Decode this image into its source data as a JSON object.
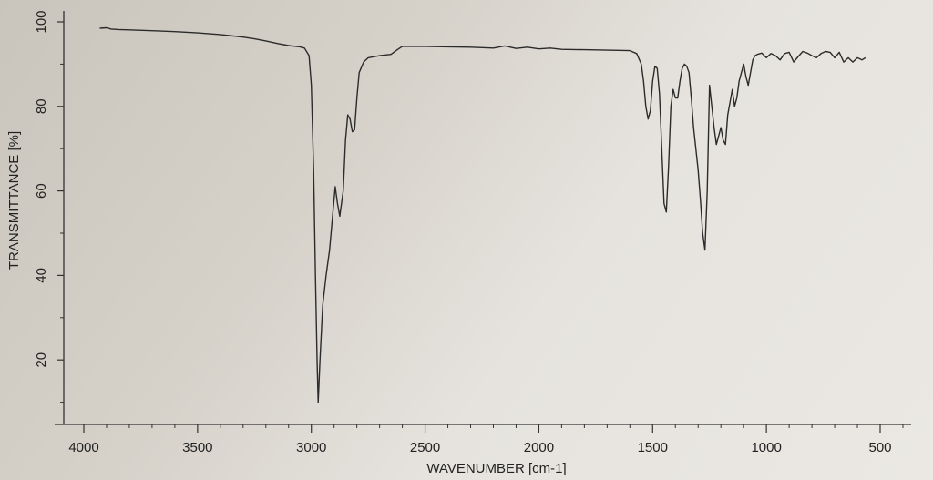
{
  "chart_data": {
    "type": "line",
    "title": "",
    "xlabel": "WAVENUMBER [cm-1]",
    "ylabel": "TRANSMITTANCE [%]",
    "xlim": [
      4000,
      500
    ],
    "ylim": [
      0,
      100
    ],
    "x_reversed": true,
    "grid": false,
    "x_ticks": [
      4000,
      3500,
      3000,
      2500,
      2000,
      1500,
      1000,
      500
    ],
    "x_tick_labels": [
      "4000",
      "3500",
      "3000",
      "2500",
      "2000",
      "1500",
      "1000",
      "500"
    ],
    "y_ticks": [
      20,
      40,
      60,
      80,
      100
    ],
    "y_tick_labels": [
      "20",
      "40",
      "60",
      "80",
      "100"
    ],
    "series": [
      {
        "color": "#2b2b2b",
        "x": [
          3930,
          3900,
          3880,
          3850,
          3800,
          3700,
          3600,
          3500,
          3400,
          3300,
          3250,
          3200,
          3150,
          3100,
          3050,
          3030,
          3010,
          3000,
          2990,
          2982,
          2975,
          2970,
          2962,
          2950,
          2935,
          2920,
          2905,
          2895,
          2885,
          2875,
          2860,
          2850,
          2840,
          2830,
          2820,
          2810,
          2800,
          2790,
          2770,
          2750,
          2700,
          2650,
          2620,
          2600,
          2500,
          2400,
          2300,
          2200,
          2150,
          2100,
          2050,
          2000,
          1950,
          1900,
          1800,
          1700,
          1600,
          1570,
          1550,
          1540,
          1530,
          1520,
          1510,
          1500,
          1490,
          1480,
          1470,
          1460,
          1450,
          1440,
          1430,
          1420,
          1410,
          1400,
          1390,
          1380,
          1370,
          1360,
          1350,
          1340,
          1330,
          1320,
          1310,
          1300,
          1290,
          1280,
          1270,
          1260,
          1250,
          1240,
          1230,
          1220,
          1210,
          1200,
          1190,
          1180,
          1170,
          1160,
          1150,
          1140,
          1130,
          1120,
          1110,
          1100,
          1090,
          1080,
          1070,
          1060,
          1050,
          1040,
          1020,
          1000,
          980,
          960,
          940,
          920,
          900,
          880,
          860,
          840,
          820,
          800,
          780,
          760,
          740,
          720,
          700,
          680,
          660,
          640,
          620,
          600,
          580,
          565
        ],
        "y": [
          98.5,
          98.6,
          98.3,
          98.2,
          98.1,
          97.9,
          97.7,
          97.4,
          97.0,
          96.4,
          96.0,
          95.5,
          94.9,
          94.4,
          94.1,
          93.8,
          92.0,
          85.0,
          65.0,
          40.0,
          20.0,
          10.0,
          20.0,
          33.0,
          40.0,
          46.0,
          55.0,
          61.0,
          57.0,
          54.0,
          60.0,
          72.0,
          78.0,
          77.0,
          74.0,
          74.5,
          82.0,
          88.0,
          90.5,
          91.5,
          92.0,
          92.3,
          93.5,
          94.2,
          94.2,
          94.1,
          94.0,
          93.8,
          94.3,
          93.7,
          94.0,
          93.6,
          93.8,
          93.5,
          93.4,
          93.3,
          93.2,
          92.5,
          90.0,
          86.0,
          80.0,
          77.0,
          79.0,
          86.0,
          89.5,
          89.0,
          83.0,
          70.0,
          57.0,
          55.0,
          66.0,
          80.0,
          84.0,
          82.0,
          82.0,
          86.0,
          89.0,
          90.0,
          89.5,
          88.0,
          82.0,
          75.0,
          70.0,
          65.0,
          58.0,
          50.0,
          46.0,
          60.0,
          85.0,
          80.0,
          75.0,
          71.0,
          73.0,
          75.0,
          72.0,
          71.0,
          78.0,
          81.0,
          84.0,
          80.0,
          82.0,
          86.0,
          88.0,
          90.0,
          87.0,
          85.0,
          88.0,
          91.0,
          92.0,
          92.3,
          92.6,
          91.5,
          92.5,
          92.0,
          91.0,
          92.5,
          92.8,
          90.5,
          91.8,
          93.0,
          92.6,
          92.0,
          91.5,
          92.5,
          93.0,
          92.8,
          91.5,
          92.8,
          90.5,
          91.5,
          90.5,
          91.5,
          91.0,
          91.5
        ]
      }
    ]
  }
}
